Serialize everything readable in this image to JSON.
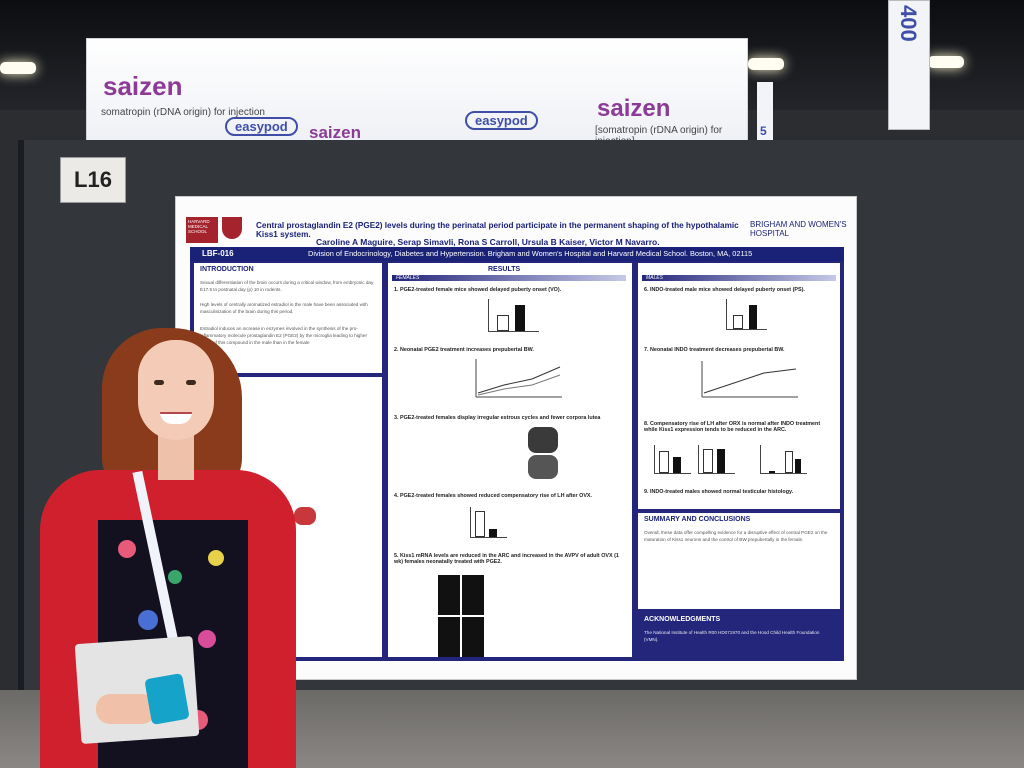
{
  "banner": {
    "brand_1": "saizen",
    "brand_1_sub": "somatropin (rDNA origin) for injection",
    "brand_2": "easypod",
    "brand_3": "saizen",
    "brand_4": "easypod",
    "brand_5": "saizen",
    "brand_5_sub": "[somatropin (rDNA origin) for injection]"
  },
  "right_sign": {
    "text": "400",
    "sub": "5"
  },
  "booth_label": "L16",
  "poster": {
    "title": "Central prostaglandin E2 (PGE2) levels during the perinatal period participate in the permanent shaping of the hypothalamic Kiss1 system.",
    "authors": "Caroline A Maguire, Serap Simavli, Rona S Carroll, Ursula B Kaiser, Victor M Navarro.",
    "code": "LBF-016",
    "affiliation": "Division of Endocrinology, Diabetes and Hypertension. Brigham and Women's Hospital and Harvard Medical School. Boston, MA, 02115",
    "hms_logo": "HARVARD MEDICAL SCHOOL",
    "bwh_logo": "BRIGHAM AND WOMEN'S HOSPITAL",
    "sections": {
      "introduction": "INTRODUCTION",
      "results": "RESULTS",
      "females": "FEMALES",
      "males": "MALES",
      "summary": "SUMMARY AND CONCLUSIONS",
      "acknowledgments": "ACKNOWLEDGMENTS"
    },
    "intro_text": [
      "Sexual differentiation of the brain occurs during a critical window, from embryonic day E17.5 to postnatal day (p) 10 in rodents.",
      "High levels of centrally aromatized estradiol in the male have been associated with masculinization of the brain during this period.",
      "Estradiol induces an increase in enzymes involved in the synthesis of the pro-inflammatory molecule prostaglandin E2 (PGE2) by the microglia leading to higher levels of this compound in the male than in the female"
    ],
    "female_results": [
      "1. PGE2-treated female mice showed delayed puberty onset (VO).",
      "2. Neonatal PGE2 treatment increases prepubertal BW.",
      "3. PGE2-treated females display irregular estrous cycles and fewer corpora lutea",
      "4. PGE2-treated females showed reduced compensatory rise of LH after OVX.",
      "5. Kiss1 mRNA levels are reduced in the ARC and increased in the AVPV of adult OVX (1 wk) females neonatally treated with PGE2."
    ],
    "male_results": [
      "6. INDO-treated male mice showed delayed puberty onset (PS).",
      "7. Neonatal INDO treatment decreases prepubertal BW.",
      "8. Compensatory rise of LH after ORX is normal after INDO treatment while Kiss1 expression tends to be reduced in the ARC.",
      "9. INDO-treated males showed normal testicular histology."
    ],
    "summary_text": "Overall, these data offer compelling evidence for a disruptive effect of central PGE2 on the maturation of Kiss1 neurons and the control of BW prepubertally in the female.",
    "ack_text": "The National Institute of Health R00 HD071970 and the Hood Child Health Foundation (VMN)."
  }
}
